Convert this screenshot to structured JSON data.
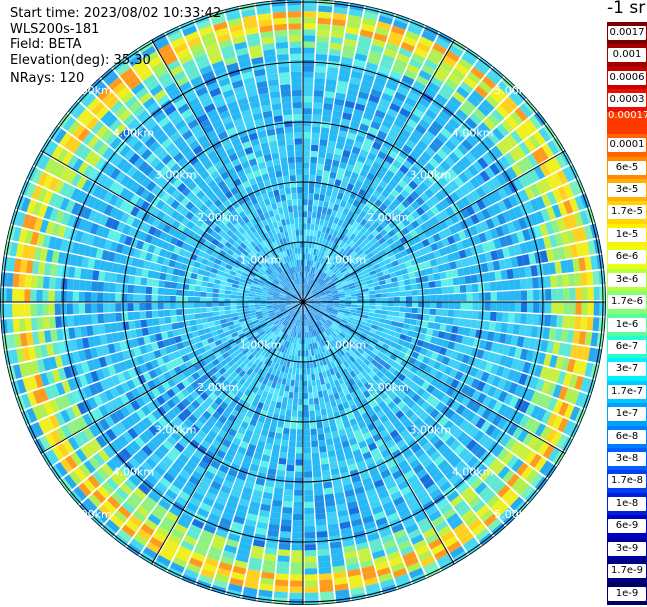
{
  "info": {
    "start_time": "Start time: 2023/08/02 10:33:42",
    "instrument": "WLS200s-181",
    "field": "Field: BETA",
    "elevation": "Elevation(deg): 35.30",
    "nrays": "NRays: 120"
  },
  "colorbar": {
    "unit_title": "-1 sr",
    "labels": [
      "0.0017",
      "0.001",
      "0.0006",
      "0.0003",
      "0.00017",
      "0.0001",
      "6e-5",
      "3e-5",
      "1.7e-5",
      "1e-5",
      "6e-6",
      "3e-6",
      "1.7e-6",
      "1e-6",
      "6e-7",
      "3e-7",
      "1.7e-7",
      "1e-7",
      "6e-8",
      "3e-8",
      "1.7e-8",
      "1e-8",
      "6e-9",
      "3e-9",
      "1.7e-9",
      "1e-9"
    ],
    "colors": [
      "#7a0000",
      "#a00000",
      "#c80000",
      "#e81000",
      "#ff3a00",
      "#ff6400",
      "#ff8c00",
      "#ffb000",
      "#ffd400",
      "#fff000",
      "#e8ff10",
      "#b8ff40",
      "#88ff70",
      "#58ffa0",
      "#28ffd0",
      "#00f0ff",
      "#00c8ff",
      "#00a0ff",
      "#0080ff",
      "#0060ff",
      "#0040f0",
      "#0020d8",
      "#0000c0",
      "#0000a0",
      "#000080",
      "#000060"
    ]
  },
  "range_rings_km": [
    1,
    2,
    3,
    4,
    5
  ],
  "range_labels": [
    "1.00km",
    "2.00km",
    "3.00km",
    "4.00km",
    "5.00km"
  ]
}
